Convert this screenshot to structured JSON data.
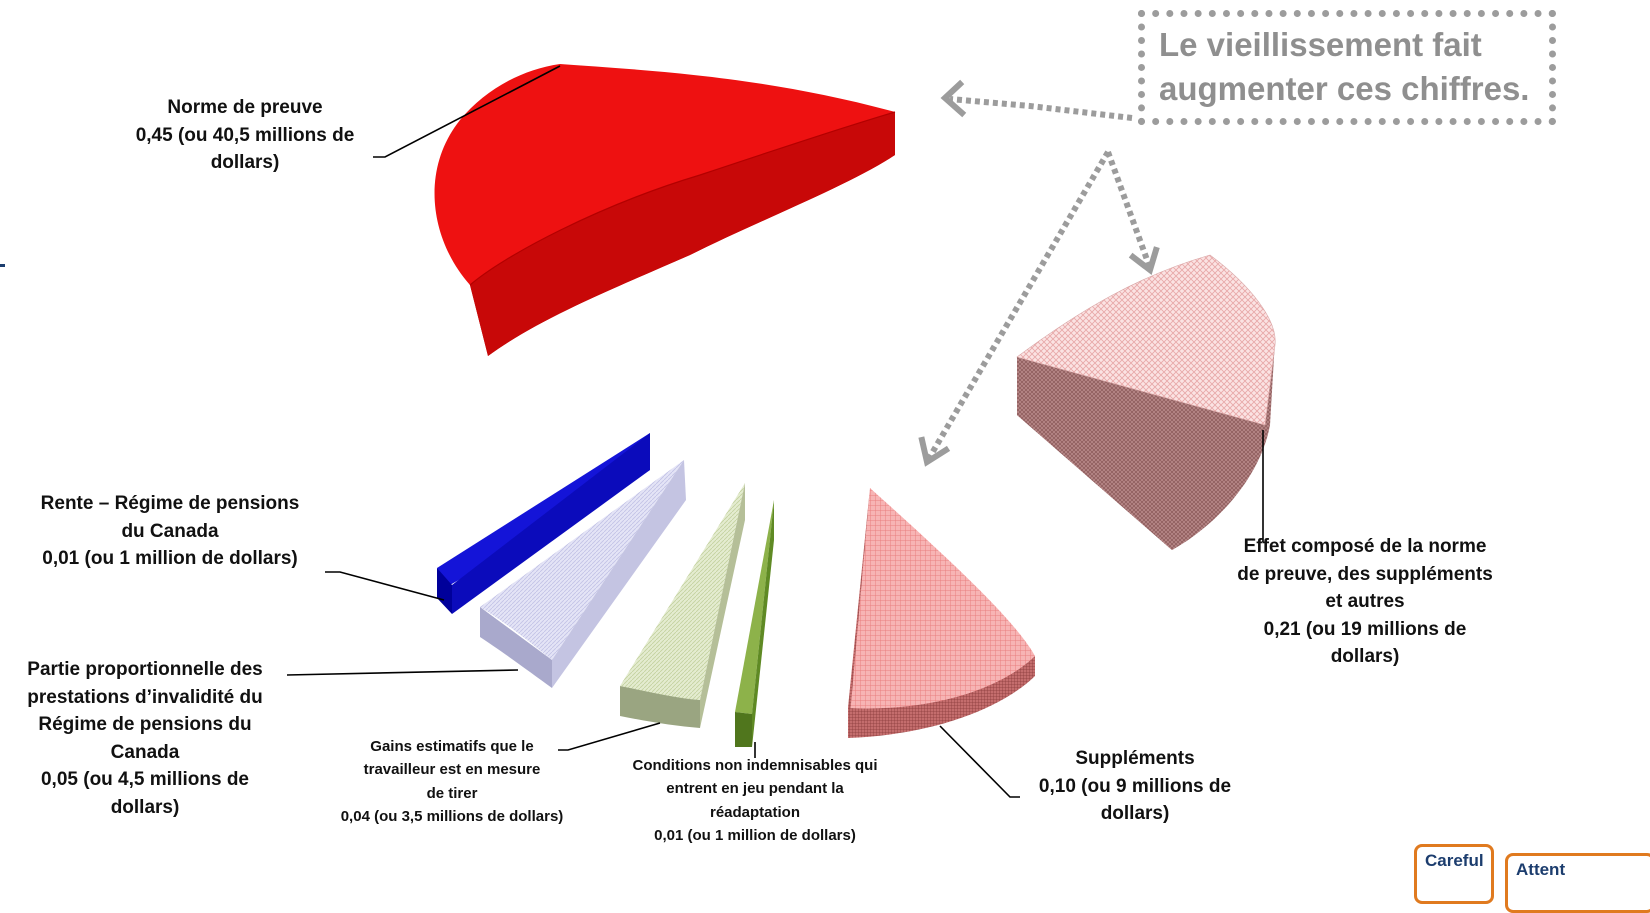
{
  "chart_data": {
    "type": "pie",
    "style": "3d-exploded",
    "slices": [
      {
        "label_lines": [
          "Norme de preuve",
          "0,45 (ou 40,5 millions de",
          "dollars)"
        ],
        "value": 0.45,
        "amount_millions": 40.5,
        "color": "#ee1111",
        "pattern": "solid"
      },
      {
        "label_lines": [
          "Effet composé de la norme",
          "de preuve, des suppléments",
          "et autres",
          "0,21 (ou 19 millions de",
          "dollars)"
        ],
        "value": 0.21,
        "amount_millions": 19,
        "color": "#f6c7c7",
        "pattern": "crosshatch"
      },
      {
        "label_lines": [
          "Suppléments",
          "0,10 (ou 9 millions de",
          "dollars)"
        ],
        "value": 0.1,
        "amount_millions": 9,
        "color": "#f29595",
        "pattern": "grid"
      },
      {
        "label_lines": [
          "Conditions non indemnisables qui",
          "entrent en jeu pendant la",
          "réadaptation",
          "0,01 (ou 1 million de dollars)"
        ],
        "value": 0.01,
        "amount_millions": 1,
        "color": "#6f9a2d",
        "pattern": "solid"
      },
      {
        "label_lines": [
          "Gains estimatifs que le",
          "travailleur est en mesure",
          "de tirer",
          "0,04 (ou 3,5 millions de dollars)"
        ],
        "value": 0.04,
        "amount_millions": 3.5,
        "color": "#dfe8c8",
        "pattern": "hatch"
      },
      {
        "label_lines": [
          "Partie proportionnelle des",
          "prestations d’invalidité du",
          "Régime de pensions du",
          "Canada",
          "0,05 (ou 4,5 millions de",
          "dollars)"
        ],
        "value": 0.05,
        "amount_millions": 4.5,
        "color": "#dcdcf4",
        "pattern": "hatch"
      },
      {
        "label_lines": [
          "Rente – Régime de pensions",
          "du Canada",
          "0,01 (ou 1 million de dollars)"
        ],
        "value": 0.01,
        "amount_millions": 1,
        "color": "#1010dd",
        "pattern": "solid"
      }
    ],
    "annotation": {
      "lines": [
        "Le vieillissement fait",
        "augmenter ces chiffres."
      ],
      "color": "#9c9c9c"
    },
    "legend": "none"
  },
  "badges": [
    "Careful",
    "Attent"
  ]
}
